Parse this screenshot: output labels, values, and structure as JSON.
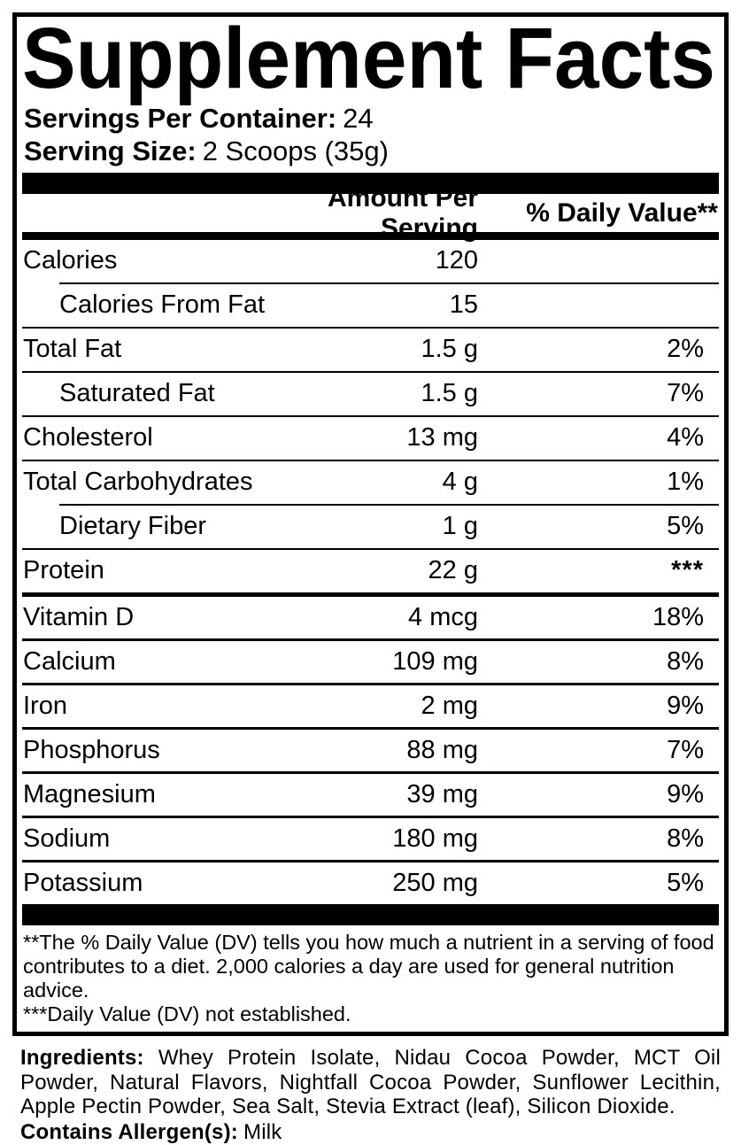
{
  "title": "Supplement Facts",
  "servings": {
    "label": "Servings Per Container:",
    "value": "24"
  },
  "serving_size": {
    "label": "Serving Size:",
    "value": "2 Scoops (35g)"
  },
  "table": {
    "headers": {
      "amount": "Amount Per Serving",
      "dv": "% Daily Value**"
    },
    "rows": [
      {
        "label": "Calories",
        "amount": "120",
        "dv": ""
      },
      {
        "label": "Calories From Fat",
        "amount": "15",
        "dv": ""
      },
      {
        "label": "Total Fat",
        "amount": "1.5 g",
        "dv": "2%"
      },
      {
        "label": "Saturated Fat",
        "amount": "1.5 g",
        "dv": "7%"
      },
      {
        "label": "Cholesterol",
        "amount": "13 mg",
        "dv": "4%"
      },
      {
        "label": "Total Carbohydrates",
        "amount": "4 g",
        "dv": "1%"
      },
      {
        "label": "Dietary Fiber",
        "amount": "1 g",
        "dv": "5%"
      },
      {
        "label": "Protein",
        "amount": "22 g",
        "dv": "***"
      },
      {
        "label": "Vitamin D",
        "amount": "4 mcg",
        "dv": "18%"
      },
      {
        "label": "Calcium",
        "amount": "109 mg",
        "dv": "8%"
      },
      {
        "label": "Iron",
        "amount": "2 mg",
        "dv": "9%"
      },
      {
        "label": "Phosphorus",
        "amount": "88 mg",
        "dv": "7%"
      },
      {
        "label": "Magnesium",
        "amount": "39 mg",
        "dv": "9%"
      },
      {
        "label": "Sodium",
        "amount": "180 mg",
        "dv": "8%"
      },
      {
        "label": "Potassium",
        "amount": "250 mg",
        "dv": "5%"
      }
    ]
  },
  "footnotes": {
    "daily_value": "**The % Daily Value (DV) tells you how much a nutrient in a serving of food contributes to a diet. 2,000 calories a day are used for general nutrition advice.",
    "not_established": "***Daily Value (DV) not established."
  },
  "ingredients": {
    "label": "Ingredients:",
    "text": "Whey Protein Isolate, Nidau Cocoa Powder, MCT Oil Powder, Natural Flavors, Nightfall Cocoa Powder, Sunflower Lecithin, Apple Pectin Powder, Sea Salt, Stevia Extract (leaf), Silicon Dioxide."
  },
  "allergens": {
    "label": "Contains Allergen(s):",
    "value": "Milk"
  },
  "colors": {
    "ink": "#000000",
    "background": "#ffffff"
  }
}
